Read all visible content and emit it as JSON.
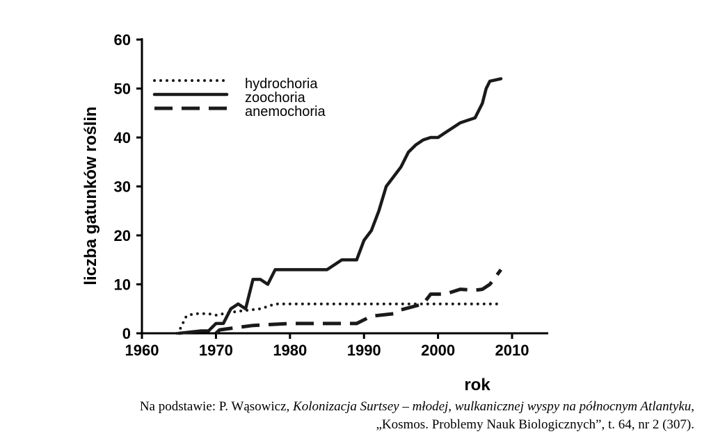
{
  "chart_data": {
    "type": "line",
    "title": "",
    "xlabel": "rok",
    "ylabel": "liczba gatunków roślin",
    "xlim": [
      1960,
      2010
    ],
    "ylim": [
      0,
      60
    ],
    "x_ticks": [
      "1960",
      "1970",
      "1980",
      "1990",
      "2000",
      "2010"
    ],
    "y_ticks": [
      "0",
      "10",
      "20",
      "30",
      "40",
      "50",
      "60"
    ],
    "legend_position": "top-left",
    "grid": false,
    "series": [
      {
        "name": "hydrochoria",
        "style": "dotted",
        "points": [
          [
            1964.7,
            0
          ],
          [
            1965.2,
            1
          ],
          [
            1966,
            3.5
          ],
          [
            1967,
            4
          ],
          [
            1969,
            4
          ],
          [
            1970,
            3.7
          ],
          [
            1971,
            4
          ],
          [
            1973,
            4.5
          ],
          [
            1976,
            5
          ],
          [
            1978,
            6
          ],
          [
            1985,
            6
          ],
          [
            1990,
            6
          ],
          [
            2000,
            6
          ],
          [
            2008,
            6
          ]
        ]
      },
      {
        "name": "zoochoria",
        "style": "solid",
        "points": [
          [
            1965,
            0
          ],
          [
            1968,
            0.5
          ],
          [
            1969,
            0.5
          ],
          [
            1970,
            2
          ],
          [
            1971,
            2
          ],
          [
            1972,
            5
          ],
          [
            1973,
            6
          ],
          [
            1974,
            5
          ],
          [
            1975,
            11
          ],
          [
            1976,
            11
          ],
          [
            1977,
            10
          ],
          [
            1978,
            13
          ],
          [
            1980,
            13
          ],
          [
            1985,
            13
          ],
          [
            1987,
            15
          ],
          [
            1988,
            15
          ],
          [
            1989,
            15
          ],
          [
            1990,
            19
          ],
          [
            1991,
            21
          ],
          [
            1992,
            25
          ],
          [
            1993,
            30
          ],
          [
            1994,
            32
          ],
          [
            1995,
            34
          ],
          [
            1996,
            37
          ],
          [
            1997,
            38.5
          ],
          [
            1998,
            39.5
          ],
          [
            1999,
            40
          ],
          [
            2000,
            40
          ],
          [
            2001,
            41
          ],
          [
            2002,
            42
          ],
          [
            2003,
            43
          ],
          [
            2004,
            43.5
          ],
          [
            2005,
            44
          ],
          [
            2006,
            47
          ],
          [
            2006.5,
            50
          ],
          [
            2007,
            51.5
          ],
          [
            2008.5,
            52
          ]
        ]
      },
      {
        "name": "anemochoria",
        "style": "dashed",
        "points": [
          [
            1970,
            0
          ],
          [
            1970.5,
            0.7
          ],
          [
            1972,
            1
          ],
          [
            1975,
            1.6
          ],
          [
            1980,
            2
          ],
          [
            1985,
            2
          ],
          [
            1989,
            2
          ],
          [
            1991,
            3.5
          ],
          [
            1994,
            4
          ],
          [
            1995,
            4.8
          ],
          [
            1998,
            6
          ],
          [
            1999,
            8
          ],
          [
            2001,
            8
          ],
          [
            2003,
            9
          ],
          [
            2005,
            8.8
          ],
          [
            2006,
            9
          ],
          [
            2007,
            10
          ],
          [
            2008.5,
            13
          ]
        ]
      }
    ]
  },
  "source": {
    "line1_prefix": "Na podstawie: P. Wąsowicz, ",
    "line1_title": "Kolonizacja Surtsey – młodej, wulkanicznej wyspy na północnym Atlantyku",
    "line1_suffix": ",",
    "line2": "„Kosmos. Problemy Nauk Biologicznych”, t. 64, nr 2 (307)."
  }
}
